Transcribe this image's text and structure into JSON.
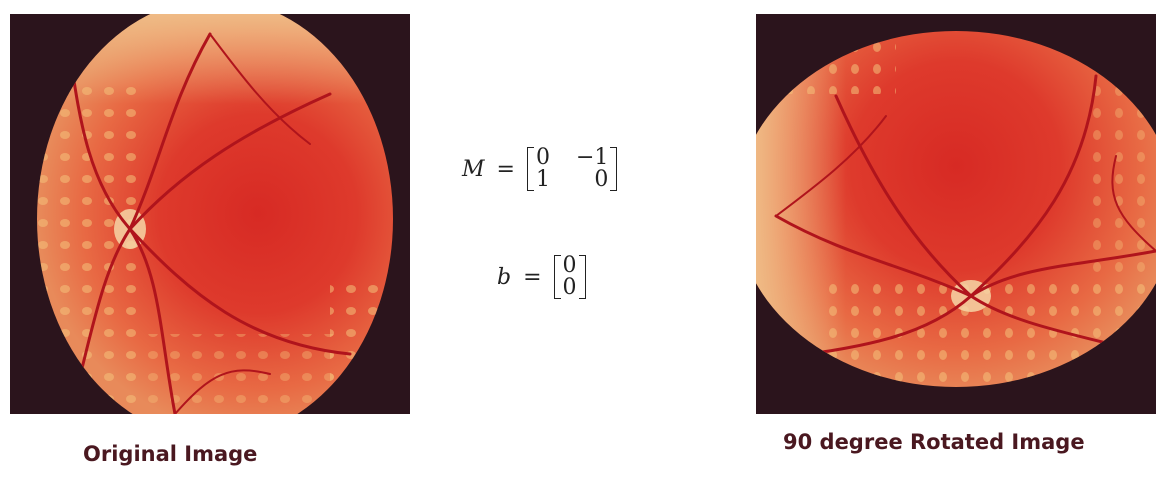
{
  "captions": {
    "original": "Original Image",
    "rotated": "90 degree Rotated Image"
  },
  "formulas": {
    "M": {
      "symbol": "M",
      "equals": "=",
      "rows": [
        [
          "0",
          "−1"
        ],
        [
          "1",
          "0"
        ]
      ]
    },
    "b": {
      "symbol": "b",
      "equals": "=",
      "rows": [
        [
          "0"
        ],
        [
          "0"
        ]
      ]
    }
  },
  "colors": {
    "background": "#2b141c",
    "retina_red": "#d83228",
    "retina_orange": "#e87048",
    "vessel": "#b0141c",
    "caption": "#4a1820"
  }
}
